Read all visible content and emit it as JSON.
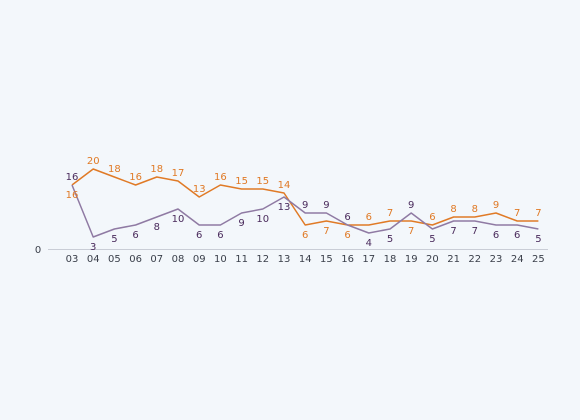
{
  "chart_data": {
    "type": "line",
    "x": [
      "03",
      "04",
      "05",
      "06",
      "07",
      "08",
      "09",
      "10",
      "11",
      "12",
      "13",
      "14",
      "15",
      "16",
      "17",
      "18",
      "19",
      "20",
      "21",
      "22",
      "23",
      "24",
      "25"
    ],
    "y_tick_labels": [
      "0"
    ],
    "ylim": [
      0,
      22
    ],
    "grid": false,
    "legend": "none",
    "series": [
      {
        "color": "#e07a26",
        "values": [
          16,
          20,
          18,
          16,
          18,
          17,
          13,
          16,
          15,
          15,
          14,
          6,
          7,
          6,
          6,
          7,
          7,
          6,
          8,
          8,
          9,
          7,
          7
        ]
      },
      {
        "color": "#8f7aa3",
        "label_color": "#4a2b5c",
        "values": [
          16,
          3,
          5,
          6,
          8,
          10,
          6,
          6,
          9,
          10,
          13,
          9,
          9,
          6,
          4,
          5,
          9,
          5,
          7,
          7,
          6,
          6,
          5
        ]
      }
    ]
  }
}
